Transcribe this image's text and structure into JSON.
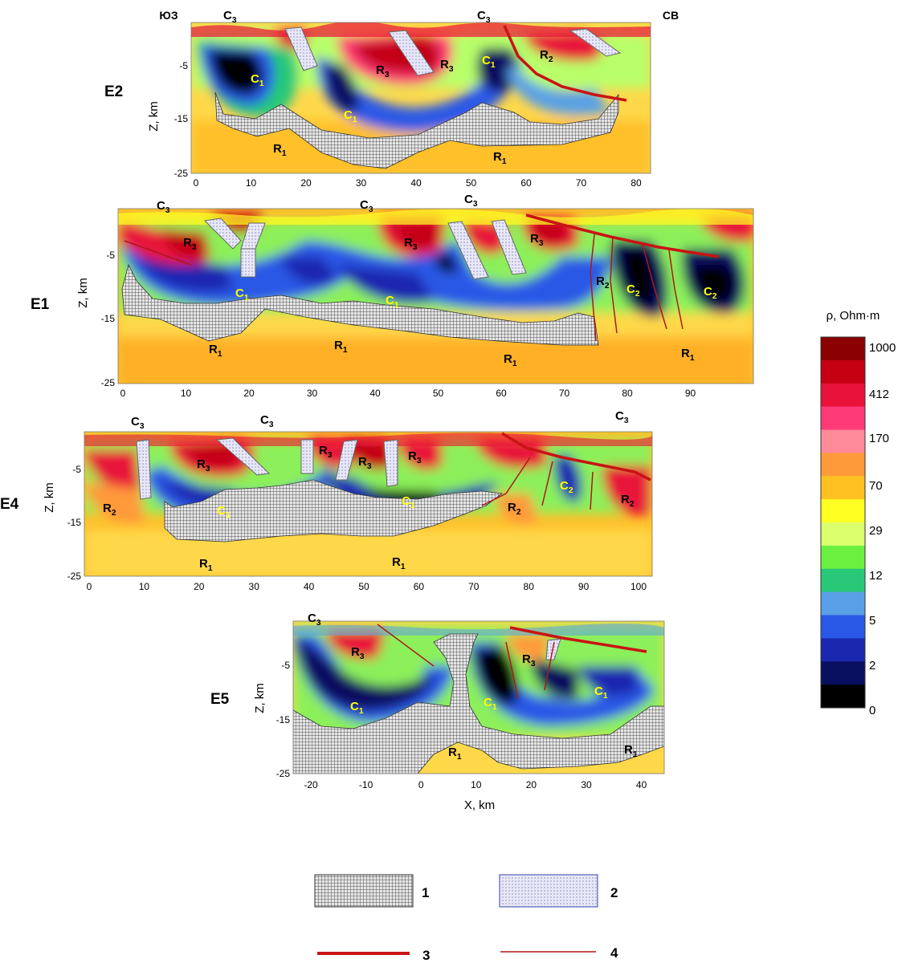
{
  "units_title": "ρ, Ohm·m",
  "colorbar": {
    "ticks": [
      "1000",
      "412",
      "170",
      "70",
      "29",
      "12",
      "5",
      "2",
      "0"
    ],
    "colors": [
      "#8b0000",
      "#c40012",
      "#e8123a",
      "#ff3a78",
      "#ff8a98",
      "#ff9a3a",
      "#ffc022",
      "#ffff22",
      "#dcff6e",
      "#6cf040",
      "#28c878",
      "#5aa0e6",
      "#2a58e6",
      "#1a28b0",
      "#0a1060",
      "#000000"
    ]
  },
  "profiles": [
    {
      "id": "E2",
      "ylabel": "Z, km",
      "yticks": [
        "-5",
        "-15",
        "-25"
      ],
      "xticks": [
        "0",
        "10",
        "20",
        "30",
        "40",
        "50",
        "60",
        "70",
        "80"
      ],
      "corner_left": "ЮЗ",
      "corner_right": "СВ",
      "labels": [
        {
          "b": "C",
          "s": "3"
        },
        {
          "b": "C",
          "s": "3"
        },
        {
          "b": "R",
          "s": "3"
        },
        {
          "b": "R",
          "s": "3"
        },
        {
          "b": "C",
          "s": "1"
        },
        {
          "b": "R",
          "s": "2"
        },
        {
          "b": "C",
          "s": "1"
        },
        {
          "b": "C",
          "s": "1"
        },
        {
          "b": "R",
          "s": "1"
        },
        {
          "b": "R",
          "s": "1"
        }
      ]
    },
    {
      "id": "E1",
      "ylabel": "Z, km",
      "yticks": [
        "-5",
        "-15",
        "-25"
      ],
      "xticks": [
        "0",
        "10",
        "20",
        "30",
        "40",
        "50",
        "60",
        "70",
        "80",
        "90"
      ],
      "labels": [
        {
          "b": "C",
          "s": "3"
        },
        {
          "b": "C",
          "s": "3"
        },
        {
          "b": "C",
          "s": "3"
        },
        {
          "b": "R",
          "s": "3"
        },
        {
          "b": "R",
          "s": "3"
        },
        {
          "b": "R",
          "s": "3"
        },
        {
          "b": "C",
          "s": "1"
        },
        {
          "b": "C",
          "s": "1"
        },
        {
          "b": "R",
          "s": "2"
        },
        {
          "b": "C",
          "s": "2"
        },
        {
          "b": "C",
          "s": "2"
        },
        {
          "b": "R",
          "s": "1"
        },
        {
          "b": "R",
          "s": "1"
        },
        {
          "b": "R",
          "s": "1"
        },
        {
          "b": "R",
          "s": "1"
        }
      ]
    },
    {
      "id": "E4",
      "ylabel": "Z, km",
      "yticks": [
        "-5",
        "-15",
        "-25"
      ],
      "xticks": [
        "0",
        "10",
        "20",
        "30",
        "40",
        "50",
        "60",
        "70",
        "80",
        "90",
        "100"
      ],
      "labels": [
        {
          "b": "C",
          "s": "3"
        },
        {
          "b": "C",
          "s": "3"
        },
        {
          "b": "C",
          "s": "3"
        },
        {
          "b": "R",
          "s": "3"
        },
        {
          "b": "R",
          "s": "3"
        },
        {
          "b": "R",
          "s": "3"
        },
        {
          "b": "R",
          "s": "3"
        },
        {
          "b": "R",
          "s": "2"
        },
        {
          "b": "C",
          "s": "1"
        },
        {
          "b": "C",
          "s": "1"
        },
        {
          "b": "R",
          "s": "2"
        },
        {
          "b": "C",
          "s": "2"
        },
        {
          "b": "R",
          "s": "2"
        },
        {
          "b": "R",
          "s": "1"
        },
        {
          "b": "R",
          "s": "1"
        }
      ]
    },
    {
      "id": "E5",
      "ylabel": "Z, km",
      "xlabel": "X, km",
      "yticks": [
        "-5",
        "-15",
        "-25"
      ],
      "xticks": [
        "-20",
        "-10",
        "0",
        "10",
        "20",
        "30",
        "40"
      ],
      "labels": [
        {
          "b": "C",
          "s": "3"
        },
        {
          "b": "R",
          "s": "3"
        },
        {
          "b": "R",
          "s": "3"
        },
        {
          "b": "C",
          "s": "1"
        },
        {
          "b": "C",
          "s": "1"
        },
        {
          "b": "C",
          "s": "1"
        },
        {
          "b": "R",
          "s": "1"
        },
        {
          "b": "R",
          "s": "1"
        }
      ]
    }
  ],
  "legend": [
    {
      "num": "1",
      "item": "crosshatched body"
    },
    {
      "num": "2",
      "item": "blue dotted dyke"
    },
    {
      "num": "3",
      "item": "thick red line"
    },
    {
      "num": "4",
      "item": "thin red line"
    }
  ]
}
